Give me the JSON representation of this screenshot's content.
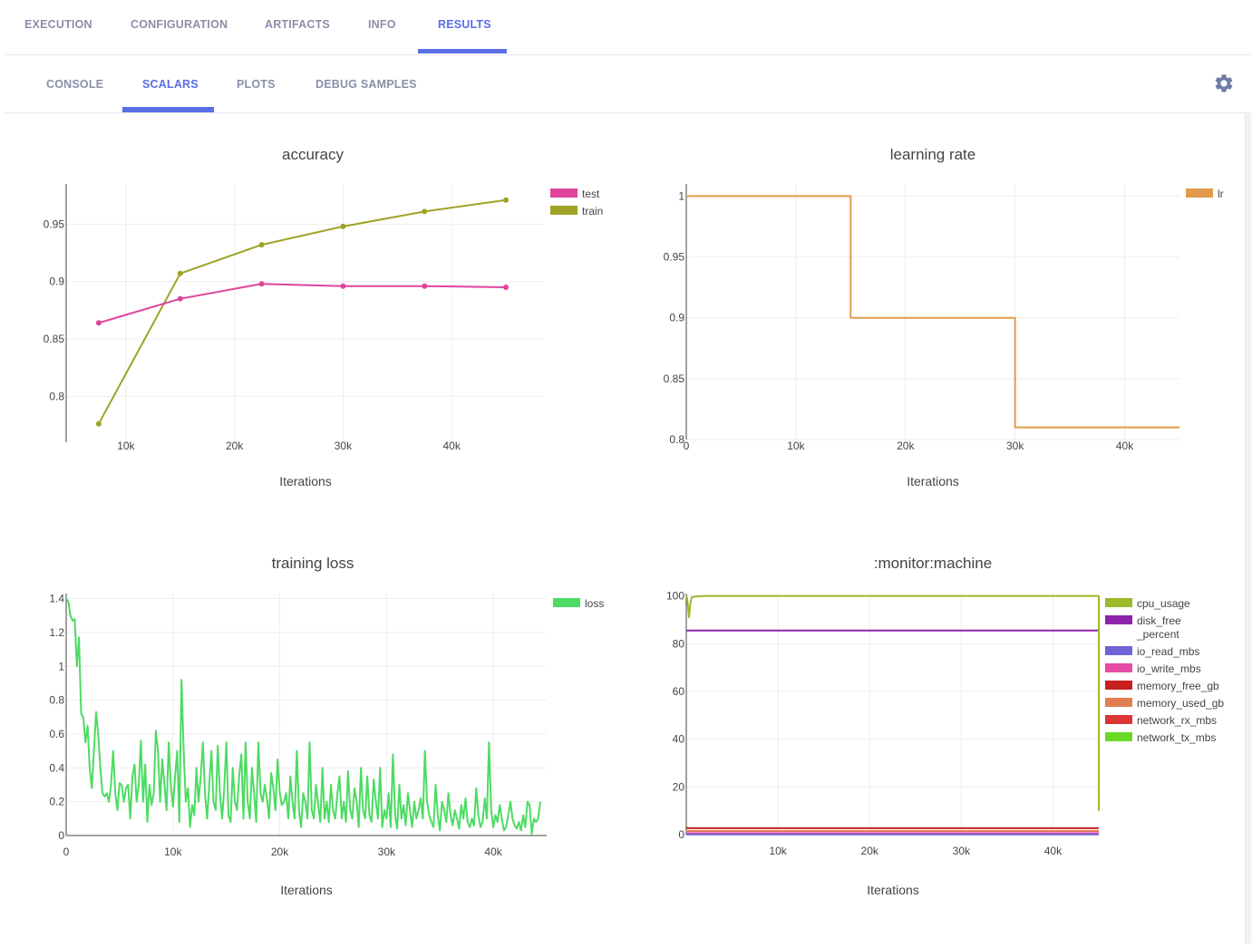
{
  "tabs": [
    {
      "label": "EXECUTION",
      "active": false
    },
    {
      "label": "CONFIGURATION",
      "active": false
    },
    {
      "label": "ARTIFACTS",
      "active": false
    },
    {
      "label": "INFO",
      "active": false
    },
    {
      "label": "RESULTS",
      "active": true
    }
  ],
  "subtabs": [
    {
      "label": "CONSOLE",
      "active": false
    },
    {
      "label": "SCALARS",
      "active": true
    },
    {
      "label": "PLOTS",
      "active": false
    },
    {
      "label": "DEBUG SAMPLES",
      "active": false
    }
  ],
  "settings_icon": "gear-icon",
  "accent_color": "#5a6ee6",
  "chart_data": [
    {
      "type": "line",
      "title": "accuracy",
      "xlabel": "Iterations",
      "ylabel": "",
      "xlim": [
        4500,
        48500
      ],
      "ylim": [
        0.76,
        0.985
      ],
      "xticks": [
        10000,
        20000,
        30000,
        40000
      ],
      "xtick_labels": [
        "10k",
        "20k",
        "30k",
        "40k"
      ],
      "yticks": [
        0.8,
        0.85,
        0.9,
        0.95
      ],
      "ytick_labels": [
        "0.8",
        "0.85",
        "0.9",
        "0.95"
      ],
      "legend": "top-right",
      "markers": true,
      "series": [
        {
          "name": "test",
          "color": "#e0449c",
          "x": [
            7500,
            15000,
            22500,
            30000,
            37500,
            45000
          ],
          "y": [
            0.864,
            0.885,
            0.898,
            0.896,
            0.896,
            0.895
          ]
        },
        {
          "name": "train",
          "color": "#9ea325",
          "x": [
            7500,
            15000,
            22500,
            30000,
            37500,
            45000
          ],
          "y": [
            0.776,
            0.907,
            0.932,
            0.948,
            0.961,
            0.971
          ]
        }
      ]
    },
    {
      "type": "line",
      "title": "learning rate",
      "xlabel": "Iterations",
      "ylabel": "",
      "xlim": [
        0,
        45000
      ],
      "ylim": [
        0.8,
        1.01
      ],
      "xticks": [
        0,
        10000,
        20000,
        30000,
        40000
      ],
      "xtick_labels": [
        "0",
        "10k",
        "20k",
        "30k",
        "40k"
      ],
      "yticks": [
        0.8,
        0.85,
        0.9,
        0.95,
        1
      ],
      "ytick_labels": [
        "0.8",
        "0.85",
        "0.9",
        "0.95",
        "1"
      ],
      "legend": "top-right",
      "markers": false,
      "series": [
        {
          "name": "lr",
          "color": "#e09c4a",
          "x": [
            0,
            15000,
            15000,
            30000,
            30000,
            45000
          ],
          "y": [
            1,
            1,
            0.9,
            0.9,
            0.81,
            0.81
          ]
        }
      ]
    },
    {
      "type": "line",
      "title": "training loss",
      "xlabel": "Iterations",
      "ylabel": "",
      "xlim": [
        0,
        45000
      ],
      "ylim": [
        0,
        1.43
      ],
      "xticks": [
        0,
        10000,
        20000,
        30000,
        40000
      ],
      "xtick_labels": [
        "0",
        "10k",
        "20k",
        "30k",
        "40k"
      ],
      "yticks": [
        0,
        0.2,
        0.4,
        0.6,
        0.8,
        1,
        1.2,
        1.4
      ],
      "ytick_labels": [
        "0",
        "0.2",
        "0.4",
        "0.6",
        "0.8",
        "1",
        "1.2",
        "1.4"
      ],
      "legend": "top-right",
      "markers": false,
      "series": [
        {
          "name": "loss",
          "color": "#4ddb63",
          "x_start": 0,
          "x_step": 200,
          "y": [
            1.4,
            1.38,
            1.3,
            1.27,
            1.28,
            1.0,
            1.17,
            0.72,
            0.7,
            0.55,
            0.65,
            0.4,
            0.28,
            0.5,
            0.73,
            0.6,
            0.4,
            0.25,
            0.23,
            0.25,
            0.2,
            0.3,
            0.5,
            0.25,
            0.15,
            0.31,
            0.3,
            0.2,
            0.28,
            0.3,
            0.1,
            0.35,
            0.42,
            0.2,
            0.3,
            0.56,
            0.2,
            0.42,
            0.08,
            0.3,
            0.18,
            0.25,
            0.62,
            0.5,
            0.2,
            0.45,
            0.3,
            0.15,
            0.55,
            0.3,
            0.17,
            0.35,
            0.5,
            0.08,
            0.92,
            0.5,
            0.2,
            0.28,
            0.05,
            0.18,
            0.12,
            0.4,
            0.2,
            0.35,
            0.55,
            0.25,
            0.1,
            0.3,
            0.5,
            0.2,
            0.15,
            0.53,
            0.25,
            0.1,
            0.28,
            0.55,
            0.12,
            0.08,
            0.4,
            0.2,
            0.15,
            0.35,
            0.48,
            0.1,
            0.55,
            0.2,
            0.1,
            0.4,
            0.25,
            0.08,
            0.55,
            0.25,
            0.2,
            0.3,
            0.22,
            0.1,
            0.37,
            0.28,
            0.15,
            0.45,
            0.25,
            0.18,
            0.2,
            0.25,
            0.1,
            0.35,
            0.2,
            0.1,
            0.5,
            0.15,
            0.05,
            0.25,
            0.2,
            0.1,
            0.55,
            0.15,
            0.1,
            0.3,
            0.18,
            0.08,
            0.4,
            0.1,
            0.2,
            0.08,
            0.3,
            0.15,
            0.1,
            0.25,
            0.35,
            0.1,
            0.2,
            0.08,
            0.38,
            0.15,
            0.1,
            0.28,
            0.2,
            0.05,
            0.4,
            0.15,
            0.1,
            0.35,
            0.12,
            0.08,
            0.33,
            0.2,
            0.1,
            0.4,
            0.05,
            0.15,
            0.1,
            0.25,
            0.05,
            0.48,
            0.12,
            0.04,
            0.3,
            0.1,
            0.18,
            0.06,
            0.25,
            0.15,
            0.05,
            0.2,
            0.1,
            0.15,
            0.22,
            0.1,
            0.5,
            0.2,
            0.12,
            0.08,
            0.05,
            0.3,
            0.12,
            0.03,
            0.2,
            0.15,
            0.08,
            0.25,
            0.12,
            0.06,
            0.15,
            0.1,
            0.04,
            0.18,
            0.1,
            0.22,
            0.08,
            0.05,
            0.1,
            0.06,
            0.28,
            0.12,
            0.05,
            0.08,
            0.22,
            0.1,
            0.55,
            0.15,
            0.05,
            0.12,
            0.08,
            0.18,
            0.1,
            0.03,
            0.05,
            0.12,
            0.2,
            0.1,
            0.06,
            0.04,
            0.08,
            0.03,
            0.12,
            0.05,
            0.2,
            0.18,
            0.01,
            0.1,
            0.08,
            0.1,
            0.2
          ]
        }
      ]
    },
    {
      "type": "line",
      "title": ":monitor:machine",
      "xlabel": "Iterations",
      "ylabel": "",
      "xlim": [
        0,
        45000
      ],
      "ylim": [
        0,
        101
      ],
      "xticks": [
        10000,
        20000,
        30000,
        40000
      ],
      "xtick_labels": [
        "10k",
        "20k",
        "30k",
        "40k"
      ],
      "yticks": [
        0,
        20,
        40,
        60,
        80,
        100
      ],
      "ytick_labels": [
        "0",
        "20",
        "40",
        "60",
        "80",
        "100"
      ],
      "legend": "top-right",
      "markers": false,
      "series": [
        {
          "name": "cpu_usage",
          "color": "#9db82a",
          "x": [
            0,
            100,
            300,
            450,
            600,
            1000,
            2000,
            45000,
            45000
          ],
          "y": [
            100,
            99,
            91,
            97,
            99.5,
            99.8,
            100,
            100,
            10
          ]
        },
        {
          "name": "disk_free_percent",
          "color": "#8e24aa",
          "x": [
            0,
            45000
          ],
          "y": [
            85.5,
            85.5
          ]
        },
        {
          "name": "io_read_mbs",
          "color": "#7163d6",
          "x": [
            0,
            45000
          ],
          "y": [
            0.1,
            0.1
          ]
        },
        {
          "name": "io_write_mbs",
          "color": "#e64ca6",
          "x": [
            0,
            45000
          ],
          "y": [
            0.6,
            0.6
          ]
        },
        {
          "name": "memory_free_gb",
          "color": "#c8201c",
          "x": [
            0,
            200,
            45000
          ],
          "y": [
            3,
            2.7,
            2.7
          ]
        },
        {
          "name": "memory_used_gb",
          "color": "#e07e52",
          "x": [
            0,
            45000
          ],
          "y": [
            1.5,
            1.5
          ]
        },
        {
          "name": "network_rx_mbs",
          "color": "#dc3535",
          "x": [
            0,
            45000
          ],
          "y": [
            0.3,
            0.3
          ]
        },
        {
          "name": "network_tx_mbs",
          "color": "#6ad923",
          "x": [
            0,
            45000
          ],
          "y": [
            0.2,
            0.2
          ]
        }
      ]
    }
  ]
}
